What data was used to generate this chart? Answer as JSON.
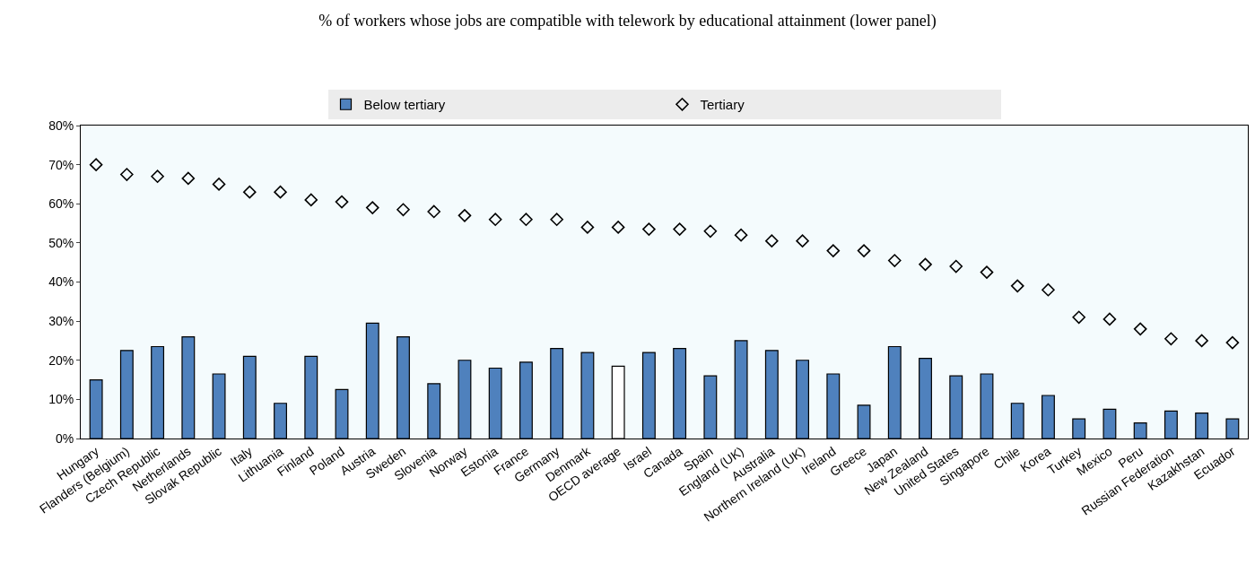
{
  "chart_data": {
    "type": "bar",
    "title": "% of workers whose jobs are compatible with telework by educational attainment (lower panel)",
    "categories": [
      "Hungary",
      "Flanders (Belgium)",
      "Czech Republic",
      "Netherlands",
      "Slovak Republic",
      "Italy",
      "Lithuania",
      "Finland",
      "Poland",
      "Austria",
      "Sweden",
      "Slovenia",
      "Norway",
      "Estonia",
      "France",
      "Germany",
      "Denmark",
      "OECD average",
      "Israel",
      "Canada",
      "Spain",
      "England (UK)",
      "Australia",
      "Northern Ireland (UK)",
      "Ireland",
      "Greece",
      "Japan",
      "New Zealand",
      "United States",
      "Singapore",
      "Chile",
      "Korea",
      "Turkey",
      "Mexico",
      "Peru",
      "Russian Federation",
      "Kazakhstan",
      "Ecuador"
    ],
    "series": [
      {
        "name": "Below tertiary",
        "color": "#4f81bd",
        "colors": [
          "#4f81bd",
          "#4f81bd",
          "#4f81bd",
          "#4f81bd",
          "#4f81bd",
          "#4f81bd",
          "#4f81bd",
          "#4f81bd",
          "#4f81bd",
          "#4f81bd",
          "#4f81bd",
          "#4f81bd",
          "#4f81bd",
          "#4f81bd",
          "#4f81bd",
          "#4f81bd",
          "#4f81bd",
          "#ffffff",
          "#4f81bd",
          "#4f81bd",
          "#4f81bd",
          "#4f81bd",
          "#4f81bd",
          "#4f81bd",
          "#4f81bd",
          "#4f81bd",
          "#4f81bd",
          "#4f81bd",
          "#4f81bd",
          "#4f81bd",
          "#4f81bd",
          "#4f81bd",
          "#4f81bd",
          "#4f81bd",
          "#4f81bd",
          "#4f81bd",
          "#4f81bd",
          "#4f81bd"
        ],
        "values": [
          15,
          22.5,
          23.5,
          26,
          16.5,
          21,
          9,
          21,
          12.5,
          29.5,
          26,
          14,
          20,
          18,
          19.5,
          23,
          22,
          18.5,
          22,
          23,
          16,
          25,
          22.5,
          20,
          16.5,
          8.5,
          23.5,
          20.5,
          16,
          16.5,
          9,
          11,
          5,
          7.5,
          4,
          7,
          6.5,
          5
        ]
      },
      {
        "name": "Tertiary",
        "type": "scatter",
        "color": "#000000",
        "marker": "diamond",
        "values": [
          70,
          67.5,
          67,
          66.5,
          65,
          63,
          63,
          61,
          60.5,
          59,
          58.5,
          58,
          57,
          56,
          56,
          56,
          54,
          54,
          53.5,
          53.5,
          53,
          52,
          50.5,
          50.5,
          48,
          48,
          45.5,
          44.5,
          44,
          42.5,
          39,
          38,
          31,
          30.5,
          28,
          25.5,
          25,
          24.5
        ]
      }
    ],
    "ylim": [
      0,
      80
    ],
    "yticks": [
      {
        "value": 0,
        "label": "0%"
      },
      {
        "value": 10,
        "label": "10%"
      },
      {
        "value": 20,
        "label": "20%"
      },
      {
        "value": 30,
        "label": "30%"
      },
      {
        "value": 40,
        "label": "40%"
      },
      {
        "value": 50,
        "label": "50%"
      },
      {
        "value": 60,
        "label": "60%"
      },
      {
        "value": 70,
        "label": "70%"
      },
      {
        "value": 80,
        "label": "80%"
      }
    ],
    "legend": "top",
    "grid": false
  }
}
